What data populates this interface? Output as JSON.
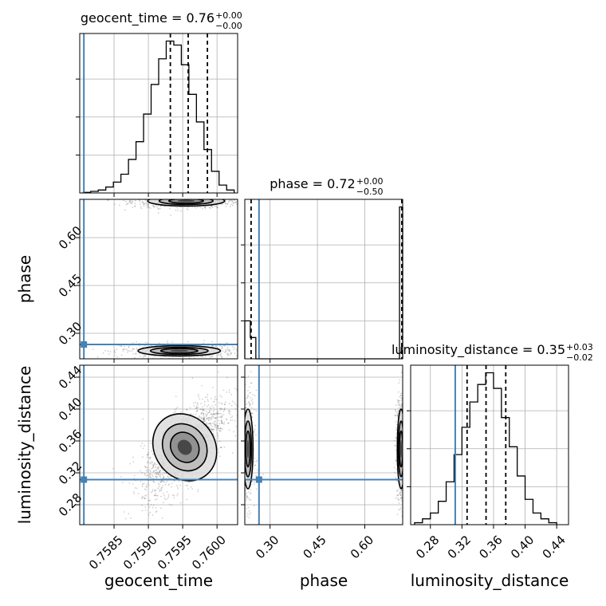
{
  "chart_data": {
    "type": "corner",
    "title": "",
    "truth_color": "#4682b4",
    "parameters": [
      {
        "name": "geocent_time",
        "title": {
          "main": "geocent_time = 0.76",
          "sup": "+0.00",
          "sub": "−0.00"
        },
        "axis_label": "geocent_time",
        "range": [
          0.758,
          0.7603
        ],
        "ticks": [
          0.7585,
          0.759,
          0.7595,
          0.76
        ],
        "tick_labels": [
          "0.7585",
          "0.7590",
          "0.7595",
          "0.7600"
        ],
        "truth": 0.75806,
        "quantiles": [
          0.75932,
          0.75958,
          0.75986
        ],
        "hist_bins": [
          0.75805,
          0.75816,
          0.75827,
          0.75838,
          0.75849,
          0.7586,
          0.75871,
          0.75882,
          0.75893,
          0.75904,
          0.75915,
          0.75926,
          0.75937,
          0.75948,
          0.75959,
          0.7597,
          0.75981,
          0.75992,
          0.76003,
          0.76014,
          0.76025
        ],
        "hist_counts": [
          0.3,
          0.8,
          1.5,
          3.0,
          5.5,
          9.5,
          17,
          26,
          40,
          55,
          68,
          77,
          75,
          65,
          50,
          36,
          22,
          11,
          4,
          1.5
        ]
      },
      {
        "name": "phase",
        "title": {
          "main": "phase = 0.72",
          "sup": "+0.00",
          "sub": "−0.50"
        },
        "axis_label": "phase",
        "range": [
          0.22,
          0.72
        ],
        "ticks": [
          0.3,
          0.45,
          0.6
        ],
        "tick_labels": [
          "0.30",
          "0.45",
          "0.60"
        ],
        "truth": 0.265,
        "quantiles": [
          0.24,
          0.72,
          0.722
        ],
        "hist_bins": [
          0.22,
          0.2375,
          0.255,
          0.2725,
          0.29,
          0.3075,
          0.325,
          0.3425,
          0.36,
          0.3775,
          0.395,
          0.4125,
          0.43,
          0.4475,
          0.465,
          0.4825,
          0.5,
          0.5175,
          0.535,
          0.5525,
          0.57,
          0.5875,
          0.605,
          0.6225,
          0.64,
          0.6575,
          0.675,
          0.6925,
          0.71,
          0.7275
        ],
        "hist_counts": [
          25,
          14,
          0,
          0,
          0,
          0,
          0,
          0,
          0,
          0,
          0,
          0,
          0,
          0,
          0,
          0,
          0,
          0,
          0,
          0,
          0,
          0,
          0,
          0,
          0,
          0,
          0,
          0,
          100
        ]
      },
      {
        "name": "luminosity_distance",
        "title": {
          "main": "luminosity_distance = 0.35",
          "sup": "+0.03",
          "sub": "−0.02"
        },
        "axis_label": "luminosity_distance",
        "range": [
          0.255,
          0.455
        ],
        "ticks": [
          0.28,
          0.32,
          0.36,
          0.4,
          0.44
        ],
        "tick_labels": [
          "0.28",
          "0.32",
          "0.36",
          "0.40",
          "0.44"
        ],
        "truth": 0.3115,
        "quantiles": [
          0.3265,
          0.3505,
          0.3755
        ],
        "hist_bins": [
          0.26,
          0.27,
          0.28,
          0.29,
          0.3,
          0.31,
          0.32,
          0.33,
          0.34,
          0.35,
          0.36,
          0.37,
          0.38,
          0.39,
          0.4,
          0.41,
          0.42,
          0.43,
          0.44
        ],
        "hist_counts": [
          1,
          3,
          6,
          12,
          22,
          36,
          50,
          63,
          72,
          78,
          70,
          55,
          40,
          25,
          13,
          6,
          3,
          1
        ]
      }
    ],
    "joint_2d": [
      {
        "x": "geocent_time",
        "y": "phase",
        "clusters": [
          {
            "center": [
              0.75955,
              0.715
            ],
            "sigma": [
              0.00028,
              0.008
            ],
            "n": 260
          },
          {
            "center": [
              0.75945,
              0.245
            ],
            "sigma": [
              0.0003,
              0.008
            ],
            "n": 200
          }
        ]
      },
      {
        "x": "geocent_time",
        "y": "luminosity_distance",
        "clusters": [
          {
            "center": [
              0.75953,
              0.352
            ],
            "sigma": [
              0.00022,
              0.022
            ],
            "correlation": 0.7,
            "n": 520
          }
        ]
      },
      {
        "x": "phase",
        "y": "luminosity_distance",
        "clusters": [
          {
            "center": [
              0.23,
              0.35
            ],
            "sigma": [
              0.008,
              0.025
            ],
            "n": 150
          },
          {
            "center": [
              0.715,
              0.35
            ],
            "sigma": [
              0.006,
              0.025
            ],
            "n": 200
          }
        ]
      }
    ]
  }
}
